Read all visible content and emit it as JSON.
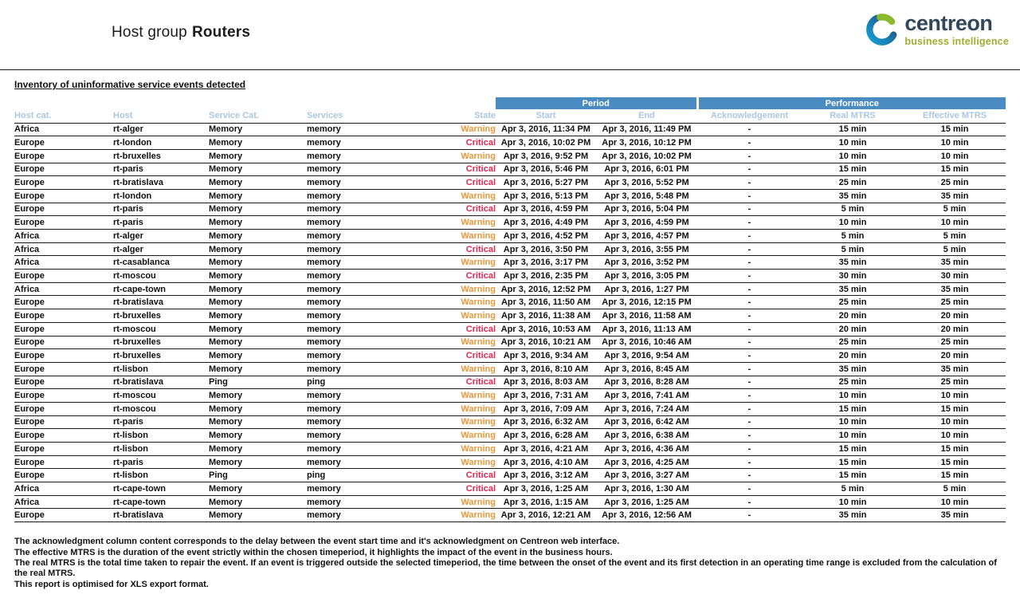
{
  "header": {
    "title_prefix": "Host group",
    "title_name": "Routers"
  },
  "logo": {
    "brand": "centreon",
    "tagline": "business intelligence"
  },
  "section_title": "Inventory of uninformative service events detected",
  "table": {
    "group_headers": {
      "period": "Period",
      "performance": "Performance"
    },
    "columns": [
      "Host cat.",
      "Host",
      "Service Cat.",
      "Services",
      "State",
      "Start",
      "End",
      "Acknowledgement",
      "Real MTRS",
      "Effective MTRS"
    ],
    "rows": [
      [
        "Africa",
        "rt-alger",
        "Memory",
        "memory",
        "Warning",
        "Apr 3, 2016, 11:34 PM",
        "Apr 3, 2016, 11:49 PM",
        "-",
        "15 min",
        "15 min"
      ],
      [
        "Europe",
        "rt-london",
        "Memory",
        "memory",
        "Critical",
        "Apr 3, 2016, 10:02 PM",
        "Apr 3, 2016, 10:12 PM",
        "-",
        "10 min",
        "10 min"
      ],
      [
        "Europe",
        "rt-bruxelles",
        "Memory",
        "memory",
        "Warning",
        "Apr 3, 2016, 9:52 PM",
        "Apr 3, 2016, 10:02 PM",
        "-",
        "10 min",
        "10 min"
      ],
      [
        "Europe",
        "rt-paris",
        "Memory",
        "memory",
        "Critical",
        "Apr 3, 2016, 5:46 PM",
        "Apr 3, 2016, 6:01 PM",
        "-",
        "15 min",
        "15 min"
      ],
      [
        "Europe",
        "rt-bratislava",
        "Memory",
        "memory",
        "Critical",
        "Apr 3, 2016, 5:27 PM",
        "Apr 3, 2016, 5:52 PM",
        "-",
        "25 min",
        "25 min"
      ],
      [
        "Europe",
        "rt-london",
        "Memory",
        "memory",
        "Warning",
        "Apr 3, 2016, 5:13 PM",
        "Apr 3, 2016, 5:48 PM",
        "-",
        "35 min",
        "35 min"
      ],
      [
        "Europe",
        "rt-paris",
        "Memory",
        "memory",
        "Critical",
        "Apr 3, 2016, 4:59 PM",
        "Apr 3, 2016, 5:04 PM",
        "-",
        "5 min",
        "5 min"
      ],
      [
        "Europe",
        "rt-paris",
        "Memory",
        "memory",
        "Warning",
        "Apr 3, 2016, 4:49 PM",
        "Apr 3, 2016, 4:59 PM",
        "-",
        "10 min",
        "10 min"
      ],
      [
        "Africa",
        "rt-alger",
        "Memory",
        "memory",
        "Warning",
        "Apr 3, 2016, 4:52 PM",
        "Apr 3, 2016, 4:57 PM",
        "-",
        "5 min",
        "5 min"
      ],
      [
        "Africa",
        "rt-alger",
        "Memory",
        "memory",
        "Critical",
        "Apr 3, 2016, 3:50 PM",
        "Apr 3, 2016, 3:55 PM",
        "-",
        "5 min",
        "5 min"
      ],
      [
        "Africa",
        "rt-casablanca",
        "Memory",
        "memory",
        "Warning",
        "Apr 3, 2016, 3:17 PM",
        "Apr 3, 2016, 3:52 PM",
        "-",
        "35 min",
        "35 min"
      ],
      [
        "Europe",
        "rt-moscou",
        "Memory",
        "memory",
        "Critical",
        "Apr 3, 2016, 2:35 PM",
        "Apr 3, 2016, 3:05 PM",
        "-",
        "30 min",
        "30 min"
      ],
      [
        "Africa",
        "rt-cape-town",
        "Memory",
        "memory",
        "Warning",
        "Apr 3, 2016, 12:52 PM",
        "Apr 3, 2016, 1:27 PM",
        "-",
        "35 min",
        "35 min"
      ],
      [
        "Europe",
        "rt-bratislava",
        "Memory",
        "memory",
        "Warning",
        "Apr 3, 2016, 11:50 AM",
        "Apr 3, 2016, 12:15 PM",
        "-",
        "25 min",
        "25 min"
      ],
      [
        "Europe",
        "rt-bruxelles",
        "Memory",
        "memory",
        "Warning",
        "Apr 3, 2016, 11:38 AM",
        "Apr 3, 2016, 11:58 AM",
        "-",
        "20 min",
        "20 min"
      ],
      [
        "Europe",
        "rt-moscou",
        "Memory",
        "memory",
        "Critical",
        "Apr 3, 2016, 10:53 AM",
        "Apr 3, 2016, 11:13 AM",
        "-",
        "20 min",
        "20 min"
      ],
      [
        "Europe",
        "rt-bruxelles",
        "Memory",
        "memory",
        "Warning",
        "Apr 3, 2016, 10:21 AM",
        "Apr 3, 2016, 10:46 AM",
        "-",
        "25 min",
        "25 min"
      ],
      [
        "Europe",
        "rt-bruxelles",
        "Memory",
        "memory",
        "Critical",
        "Apr 3, 2016, 9:34 AM",
        "Apr 3, 2016, 9:54 AM",
        "-",
        "20 min",
        "20 min"
      ],
      [
        "Europe",
        "rt-lisbon",
        "Memory",
        "memory",
        "Warning",
        "Apr 3, 2016, 8:10 AM",
        "Apr 3, 2016, 8:45 AM",
        "-",
        "35 min",
        "35 min"
      ],
      [
        "Europe",
        "rt-bratislava",
        "Ping",
        "ping",
        "Critical",
        "Apr 3, 2016, 8:03 AM",
        "Apr 3, 2016, 8:28 AM",
        "-",
        "25 min",
        "25 min"
      ],
      [
        "Europe",
        "rt-moscou",
        "Memory",
        "memory",
        "Warning",
        "Apr 3, 2016, 7:31 AM",
        "Apr 3, 2016, 7:41 AM",
        "-",
        "10 min",
        "10 min"
      ],
      [
        "Europe",
        "rt-moscou",
        "Memory",
        "memory",
        "Warning",
        "Apr 3, 2016, 7:09 AM",
        "Apr 3, 2016, 7:24 AM",
        "-",
        "15 min",
        "15 min"
      ],
      [
        "Europe",
        "rt-paris",
        "Memory",
        "memory",
        "Warning",
        "Apr 3, 2016, 6:32 AM",
        "Apr 3, 2016, 6:42 AM",
        "-",
        "10 min",
        "10 min"
      ],
      [
        "Europe",
        "rt-lisbon",
        "Memory",
        "memory",
        "Warning",
        "Apr 3, 2016, 6:28 AM",
        "Apr 3, 2016, 6:38 AM",
        "-",
        "10 min",
        "10 min"
      ],
      [
        "Europe",
        "rt-lisbon",
        "Memory",
        "memory",
        "Warning",
        "Apr 3, 2016, 4:21 AM",
        "Apr 3, 2016, 4:36 AM",
        "-",
        "15 min",
        "15 min"
      ],
      [
        "Europe",
        "rt-paris",
        "Memory",
        "memory",
        "Warning",
        "Apr 3, 2016, 4:10 AM",
        "Apr 3, 2016, 4:25 AM",
        "-",
        "15 min",
        "15 min"
      ],
      [
        "Europe",
        "rt-lisbon",
        "Ping",
        "ping",
        "Critical",
        "Apr 3, 2016, 3:12 AM",
        "Apr 3, 2016, 3:27 AM",
        "-",
        "15 min",
        "15 min"
      ],
      [
        "Africa",
        "rt-cape-town",
        "Memory",
        "memory",
        "Critical",
        "Apr 3, 2016, 1:25 AM",
        "Apr 3, 2016, 1:30 AM",
        "-",
        "5 min",
        "5 min"
      ],
      [
        "Africa",
        "rt-cape-town",
        "Memory",
        "memory",
        "Warning",
        "Apr 3, 2016, 1:15 AM",
        "Apr 3, 2016, 1:25 AM",
        "-",
        "10 min",
        "10 min"
      ],
      [
        "Europe",
        "rt-bratislava",
        "Memory",
        "memory",
        "Warning",
        "Apr 3, 2016, 12:21 AM",
        "Apr 3, 2016, 12:56 AM",
        "-",
        "35 min",
        "35 min"
      ]
    ]
  },
  "footer": {
    "lines": [
      "The acknowledgment column content corresponds to the delay between the event start time and it's acknowledgment on Centreon web interface.",
      "The effective MTRS is the duration of the event strictly within the chosen timeperiod, it highlights the impact of the event in the business hours.",
      "The real MTRS is the total time taken to repair the event. If an event is triggered outside the selected timeperiod, the time between the onset of the event and its first detection in an operating time range is excluded from the calculation of the real MTRS.",
      "This report is optimised for XLS export format."
    ]
  },
  "colors": {
    "warning": "#e8973b",
    "critical": "#e22851",
    "header_bar": "#4a8cc2",
    "column_header_text": "#a9c7e0"
  }
}
